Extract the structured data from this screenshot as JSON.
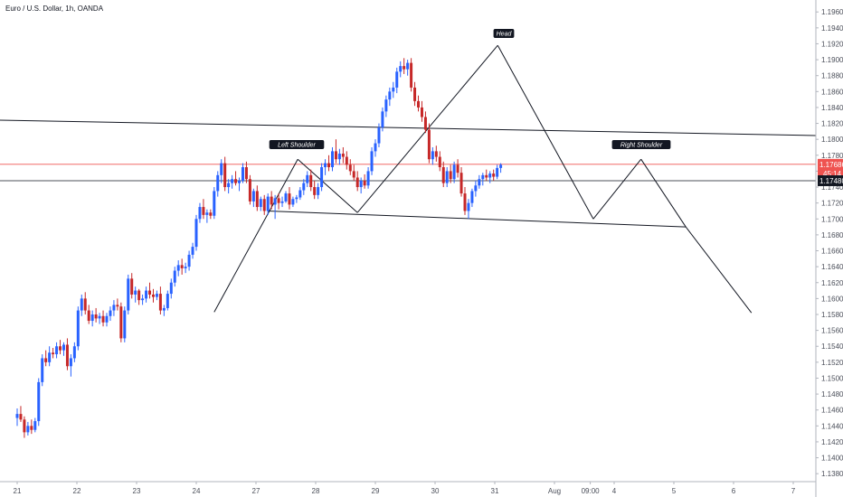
{
  "header": {
    "title": "Euro / U.S. Dollar, 1h, OANDA"
  },
  "colors": {
    "up": "#2962ff",
    "down": "#c62828",
    "drawing": "#131722",
    "price_line": "#ef5350",
    "axis_border": "#b2b5be"
  },
  "chart_data": {
    "type": "candlestick",
    "title": "Euro / U.S. Dollar, 1h, OANDA",
    "ylim": [
      1.137,
      1.1975
    ],
    "y_ticks": [
      "1.19600",
      "1.19400",
      "1.19200",
      "1.19000",
      "1.18800",
      "1.18600",
      "1.18400",
      "1.18200",
      "1.18000",
      "1.17800",
      "1.17600",
      "1.17400",
      "1.17200",
      "1.17000",
      "1.16800",
      "1.16600",
      "1.16400",
      "1.16200",
      "1.16000",
      "1.15800",
      "1.15600",
      "1.15400",
      "1.15200",
      "1.15000",
      "1.14800",
      "1.14600",
      "1.14400",
      "1.14200",
      "1.14000",
      "1.13800"
    ],
    "y_tick_values": [
      1.196,
      1.194,
      1.192,
      1.19,
      1.188,
      1.186,
      1.184,
      1.182,
      1.18,
      1.178,
      1.176,
      1.174,
      1.172,
      1.17,
      1.168,
      1.166,
      1.164,
      1.162,
      1.16,
      1.158,
      1.156,
      1.154,
      1.152,
      1.15,
      1.148,
      1.146,
      1.144,
      1.142,
      1.14,
      1.138
    ],
    "x_ticks": [
      {
        "label": "21",
        "t": 0.0
      },
      {
        "label": "22",
        "t": 1.0
      },
      {
        "label": "23",
        "t": 2.0
      },
      {
        "label": "24",
        "t": 3.0
      },
      {
        "label": "27",
        "t": 4.0
      },
      {
        "label": "28",
        "t": 5.0
      },
      {
        "label": "29",
        "t": 6.0
      },
      {
        "label": "30",
        "t": 7.0
      },
      {
        "label": "31",
        "t": 8.0
      },
      {
        "label": "Aug",
        "t": 9.0
      },
      {
        "label": "09:00",
        "t": 9.6
      },
      {
        "label": "4",
        "t": 10.0
      },
      {
        "label": "5",
        "t": 11.0
      },
      {
        "label": "6",
        "t": 12.0
      },
      {
        "label": "7",
        "t": 13.0
      }
    ],
    "series": [
      {
        "candles": [
          [
            0.0,
            1.145,
            1.1462,
            1.144,
            1.1455
          ],
          [
            0.06,
            1.1455,
            1.1465,
            1.1445,
            1.1448
          ],
          [
            0.12,
            1.1448,
            1.1452,
            1.1425,
            1.1432
          ],
          [
            0.18,
            1.1432,
            1.1445,
            1.1428,
            1.144
          ],
          [
            0.24,
            1.144,
            1.1448,
            1.143,
            1.1435
          ],
          [
            0.3,
            1.1435,
            1.145,
            1.1432,
            1.1446
          ],
          [
            0.36,
            1.1446,
            1.15,
            1.144,
            1.1495
          ],
          [
            0.42,
            1.1495,
            1.153,
            1.149,
            1.1525
          ],
          [
            0.48,
            1.1525,
            1.1535,
            1.1515,
            1.152
          ],
          [
            0.54,
            1.152,
            1.154,
            1.1515,
            1.1532
          ],
          [
            0.6,
            1.1532,
            1.1538,
            1.1525,
            1.153
          ],
          [
            0.66,
            1.153,
            1.1545,
            1.1525,
            1.154
          ],
          [
            0.72,
            1.154,
            1.1548,
            1.153,
            1.1535
          ],
          [
            0.78,
            1.1535,
            1.1545,
            1.1528,
            1.1542
          ],
          [
            0.84,
            1.1542,
            1.155,
            1.151,
            1.1515
          ],
          [
            0.9,
            1.1515,
            1.153,
            1.1502,
            1.1525
          ],
          [
            0.96,
            1.1525,
            1.1545,
            1.152,
            1.154
          ],
          [
            1.02,
            1.154,
            1.159,
            1.1535,
            1.1585
          ],
          [
            1.08,
            1.1585,
            1.1605,
            1.1578,
            1.16
          ],
          [
            1.14,
            1.16,
            1.1608,
            1.158,
            1.1585
          ],
          [
            1.2,
            1.1585,
            1.1592,
            1.1568,
            1.1572
          ],
          [
            1.26,
            1.1572,
            1.1585,
            1.1565,
            1.158
          ],
          [
            1.32,
            1.158,
            1.1588,
            1.157,
            1.1575
          ],
          [
            1.38,
            1.1575,
            1.1582,
            1.1568,
            1.1578
          ],
          [
            1.44,
            1.1578,
            1.1585,
            1.1565,
            1.157
          ],
          [
            1.5,
            1.157,
            1.1582,
            1.1565,
            1.1578
          ],
          [
            1.56,
            1.1578,
            1.159,
            1.1572,
            1.1585
          ],
          [
            1.62,
            1.1585,
            1.1598,
            1.1578,
            1.1592
          ],
          [
            1.68,
            1.1592,
            1.16,
            1.1585,
            1.159
          ],
          [
            1.74,
            1.159,
            1.1595,
            1.1545,
            1.155
          ],
          [
            1.8,
            1.155,
            1.159,
            1.1545,
            1.1585
          ],
          [
            1.86,
            1.1585,
            1.163,
            1.158,
            1.1625
          ],
          [
            1.92,
            1.1625,
            1.1632,
            1.16,
            1.1605
          ],
          [
            1.98,
            1.1605,
            1.1615,
            1.1595,
            1.161
          ],
          [
            2.04,
            1.161,
            1.1612,
            1.1592,
            1.1598
          ],
          [
            2.1,
            1.1598,
            1.1605,
            1.1592,
            1.16
          ],
          [
            2.16,
            1.16,
            1.1615,
            1.1595,
            1.161
          ],
          [
            2.22,
            1.161,
            1.162,
            1.16,
            1.1605
          ],
          [
            2.28,
            1.1605,
            1.1612,
            1.1595,
            1.1602
          ],
          [
            2.34,
            1.1602,
            1.161,
            1.1598,
            1.1606
          ],
          [
            2.4,
            1.1606,
            1.1615,
            1.158,
            1.1585
          ],
          [
            2.46,
            1.1585,
            1.1592,
            1.1578,
            1.1588
          ],
          [
            2.52,
            1.1588,
            1.161,
            1.1585,
            1.1606
          ],
          [
            2.58,
            1.1606,
            1.1625,
            1.16,
            1.162
          ],
          [
            2.64,
            1.162,
            1.164,
            1.1615,
            1.1635
          ],
          [
            2.7,
            1.1635,
            1.1648,
            1.1628,
            1.1642
          ],
          [
            2.76,
            1.1642,
            1.165,
            1.163,
            1.1638
          ],
          [
            2.82,
            1.1638,
            1.1645,
            1.1632,
            1.164
          ],
          [
            2.88,
            1.164,
            1.166,
            1.1635,
            1.1655
          ],
          [
            2.94,
            1.1655,
            1.167,
            1.165,
            1.1665
          ],
          [
            3.0,
            1.1665,
            1.1705,
            1.166,
            1.17
          ],
          [
            3.06,
            1.17,
            1.172,
            1.1695,
            1.1715
          ],
          [
            3.12,
            1.1715,
            1.1725,
            1.17,
            1.1705
          ],
          [
            3.18,
            1.1705,
            1.1712,
            1.1695,
            1.1708
          ],
          [
            3.24,
            1.1708,
            1.1712,
            1.17,
            1.1704
          ],
          [
            3.3,
            1.1704,
            1.174,
            1.17,
            1.1735
          ],
          [
            3.36,
            1.1735,
            1.176,
            1.1728,
            1.1755
          ],
          [
            3.42,
            1.1755,
            1.1775,
            1.1745,
            1.177
          ],
          [
            3.48,
            1.177,
            1.1778,
            1.1735,
            1.174
          ],
          [
            3.54,
            1.174,
            1.175,
            1.1732,
            1.1745
          ],
          [
            3.6,
            1.1745,
            1.1755,
            1.1738,
            1.175
          ],
          [
            3.66,
            1.175,
            1.176,
            1.1742,
            1.1745
          ],
          [
            3.72,
            1.1745,
            1.1752,
            1.1735,
            1.1748
          ],
          [
            3.78,
            1.1748,
            1.177,
            1.1745,
            1.1765
          ],
          [
            3.84,
            1.1765,
            1.1772,
            1.1745,
            1.175
          ],
          [
            3.9,
            1.175,
            1.1755,
            1.1718,
            1.1722
          ],
          [
            3.96,
            1.1722,
            1.1738,
            1.1715,
            1.1735
          ],
          [
            4.02,
            1.1735,
            1.1742,
            1.171,
            1.1715
          ],
          [
            4.08,
            1.1715,
            1.1728,
            1.171,
            1.1725
          ],
          [
            4.14,
            1.1725,
            1.173,
            1.1705,
            1.171
          ],
          [
            4.2,
            1.171,
            1.1732,
            1.1705,
            1.1728
          ],
          [
            4.26,
            1.1728,
            1.1735,
            1.1712,
            1.1718
          ],
          [
            4.32,
            1.1718,
            1.173,
            1.17,
            1.1726
          ],
          [
            4.38,
            1.1726,
            1.1732,
            1.1712,
            1.172
          ],
          [
            4.44,
            1.172,
            1.1728,
            1.1715,
            1.1722
          ],
          [
            4.5,
            1.1722,
            1.1735,
            1.172,
            1.1732
          ],
          [
            4.56,
            1.1732,
            1.174,
            1.1712,
            1.1718
          ],
          [
            4.62,
            1.1718,
            1.1728,
            1.1715,
            1.1725
          ],
          [
            4.68,
            1.1725,
            1.173,
            1.172,
            1.1727
          ],
          [
            4.74,
            1.1727,
            1.174,
            1.1724,
            1.1736
          ],
          [
            4.8,
            1.1736,
            1.175,
            1.173,
            1.1745
          ],
          [
            4.86,
            1.1745,
            1.176,
            1.174,
            1.1755
          ],
          [
            4.92,
            1.1755,
            1.1762,
            1.1735,
            1.174
          ],
          [
            4.98,
            1.174,
            1.1748,
            1.1725,
            1.173
          ],
          [
            5.04,
            1.173,
            1.1745,
            1.1725,
            1.174
          ],
          [
            5.1,
            1.174,
            1.177,
            1.1735,
            1.1765
          ],
          [
            5.16,
            1.1765,
            1.1775,
            1.1755,
            1.177
          ],
          [
            5.22,
            1.177,
            1.178,
            1.176,
            1.1765
          ],
          [
            5.28,
            1.1765,
            1.179,
            1.176,
            1.1785
          ],
          [
            5.34,
            1.1785,
            1.18,
            1.177,
            1.1775
          ],
          [
            5.4,
            1.1775,
            1.1788,
            1.1768,
            1.1782
          ],
          [
            5.46,
            1.1782,
            1.179,
            1.177,
            1.1778
          ],
          [
            5.52,
            1.1778,
            1.1785,
            1.1762,
            1.1768
          ],
          [
            5.58,
            1.1768,
            1.1775,
            1.1755,
            1.176
          ],
          [
            5.64,
            1.176,
            1.1768,
            1.1748,
            1.1752
          ],
          [
            5.7,
            1.1752,
            1.176,
            1.1735,
            1.174
          ],
          [
            5.76,
            1.174,
            1.1752,
            1.1732,
            1.1748
          ],
          [
            5.82,
            1.1748,
            1.1756,
            1.1738,
            1.1742
          ],
          [
            5.88,
            1.1742,
            1.1765,
            1.1738,
            1.176
          ],
          [
            5.94,
            1.176,
            1.179,
            1.1755,
            1.1785
          ],
          [
            6.0,
            1.1785,
            1.18,
            1.1778,
            1.1795
          ],
          [
            6.06,
            1.1795,
            1.182,
            1.179,
            1.1815
          ],
          [
            6.12,
            1.1815,
            1.184,
            1.181,
            1.1835
          ],
          [
            6.18,
            1.1835,
            1.1855,
            1.1828,
            1.185
          ],
          [
            6.24,
            1.185,
            1.1865,
            1.1842,
            1.186
          ],
          [
            6.3,
            1.186,
            1.1872,
            1.1852,
            1.1865
          ],
          [
            6.36,
            1.1865,
            1.189,
            1.1858,
            1.1885
          ],
          [
            6.42,
            1.1885,
            1.1898,
            1.1878,
            1.1892
          ],
          [
            6.48,
            1.1892,
            1.1902,
            1.1882,
            1.1888
          ],
          [
            6.54,
            1.1888,
            1.19,
            1.188,
            1.1896
          ],
          [
            6.6,
            1.1896,
            1.1902,
            1.186,
            1.1865
          ],
          [
            6.66,
            1.1865,
            1.1872,
            1.1842,
            1.1848
          ],
          [
            6.72,
            1.1848,
            1.1855,
            1.1835,
            1.184
          ],
          [
            6.78,
            1.184,
            1.1848,
            1.1822,
            1.1828
          ],
          [
            6.84,
            1.1828,
            1.1835,
            1.1808,
            1.1812
          ],
          [
            6.9,
            1.1812,
            1.182,
            1.177,
            1.1775
          ],
          [
            6.96,
            1.1775,
            1.179,
            1.1768,
            1.1785
          ],
          [
            7.02,
            1.1785,
            1.1792,
            1.1772,
            1.1778
          ],
          [
            7.08,
            1.1778,
            1.1785,
            1.176,
            1.1765
          ],
          [
            7.14,
            1.1765,
            1.1772,
            1.174,
            1.1745
          ],
          [
            7.2,
            1.1745,
            1.1765,
            1.174,
            1.176
          ],
          [
            7.26,
            1.176,
            1.1768,
            1.1745,
            1.175
          ],
          [
            7.32,
            1.175,
            1.1772,
            1.1745,
            1.1768
          ],
          [
            7.38,
            1.1768,
            1.1775,
            1.1752,
            1.1758
          ],
          [
            7.44,
            1.1758,
            1.1765,
            1.1728,
            1.1732
          ],
          [
            7.5,
            1.1732,
            1.174,
            1.1705,
            1.171
          ],
          [
            7.56,
            1.171,
            1.1725,
            1.17,
            1.172
          ],
          [
            7.62,
            1.172,
            1.1738,
            1.1715,
            1.1735
          ],
          [
            7.68,
            1.1735,
            1.1748,
            1.1728,
            1.1742
          ],
          [
            7.74,
            1.1742,
            1.1755,
            1.1738,
            1.175
          ],
          [
            7.8,
            1.175,
            1.1758,
            1.1742,
            1.1755
          ],
          [
            7.86,
            1.1755,
            1.1762,
            1.1748,
            1.1752
          ],
          [
            7.92,
            1.1752,
            1.176,
            1.1745,
            1.1757
          ],
          [
            7.98,
            1.1757,
            1.1762,
            1.1748,
            1.1753
          ],
          [
            8.04,
            1.1753,
            1.1768,
            1.175,
            1.1764
          ],
          [
            8.1,
            1.1764,
            1.177,
            1.1758,
            1.1768
          ]
        ]
      }
    ],
    "last_price": "1.17686",
    "countdown": "45:14",
    "level_price": "1.17480",
    "annotations": [
      {
        "label": "Head",
        "x": 7.0
      },
      {
        "label": "Left Shoulder",
        "x": 4.0
      },
      {
        "label": "Right Shoulder",
        "x": 9.5
      }
    ]
  }
}
